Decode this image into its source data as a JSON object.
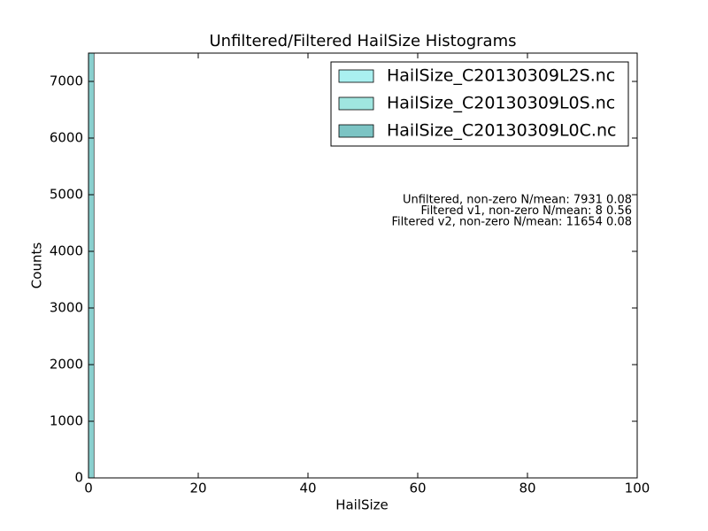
{
  "chart_data": {
    "type": "histogram",
    "title": "Unfiltered/Filtered HailSize Histograms",
    "xlabel": "HailSize",
    "ylabel": "Counts",
    "bins": [
      0,
      1
    ],
    "series": [
      {
        "name": "HailSize_C20130309L2S.nc",
        "color": "#aaf0f0",
        "values": [
          7500
        ]
      },
      {
        "name": "HailSize_C20130309L0S.nc",
        "color": "#a0e6e0",
        "values": [
          7500
        ]
      },
      {
        "name": "HailSize_C20130309L0C.nc",
        "color": "#7cc4c4",
        "values": [
          7500
        ]
      }
    ],
    "xlim": [
      0,
      100
    ],
    "xticks": [
      0,
      20,
      40,
      60,
      80,
      100
    ],
    "ylim": [
      0,
      7500
    ],
    "yticks": [
      0,
      1000,
      2000,
      3000,
      4000,
      5000,
      6000,
      7000
    ],
    "legend": "upper right",
    "annotations": [
      "Unfiltered, non-zero N/mean: 7931 0.08",
      "Filtered v1, non-zero N/mean: 8 0.56",
      "Filtered v2, non-zero N/mean: 11654 0.08"
    ]
  }
}
